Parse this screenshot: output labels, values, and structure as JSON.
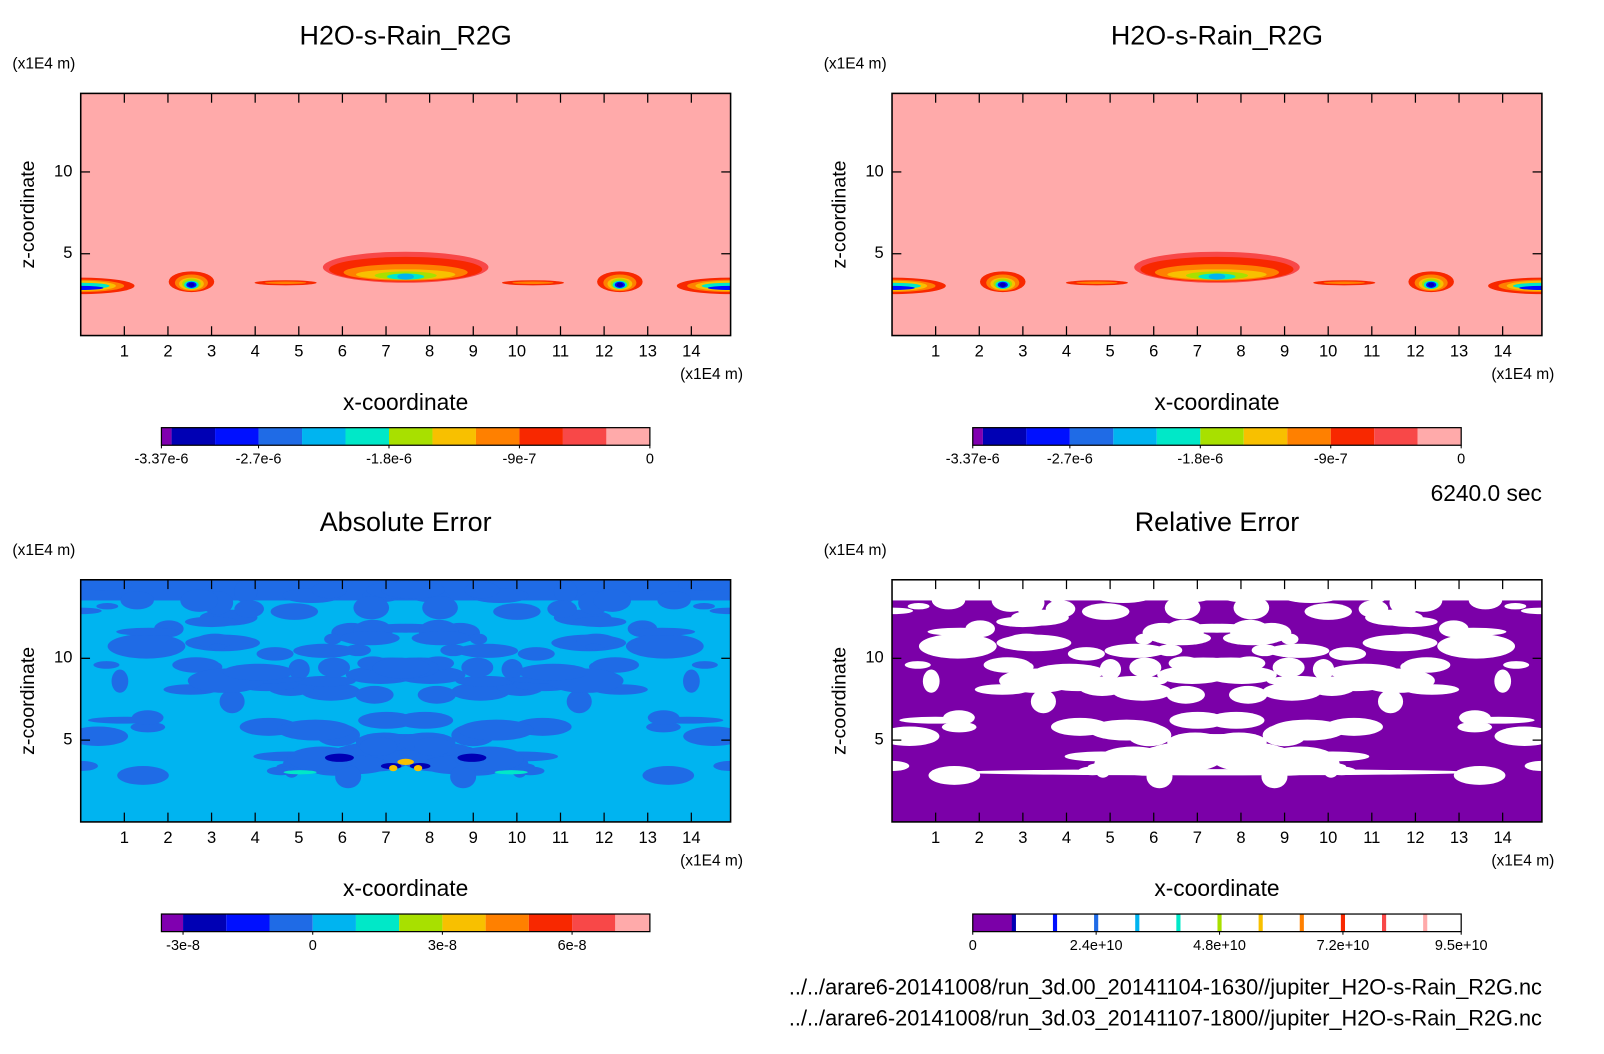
{
  "chart_data": [
    {
      "type": "contour",
      "title": "H2O-s-Rain_R2G",
      "xlabel": "x-coordinate",
      "ylabel": "z-coordinate",
      "x_unit": "(x1E4 m)",
      "y_unit": "(x1E4 m)",
      "xlim": [
        0,
        14.9
      ],
      "ylim": [
        0,
        14.8
      ],
      "xticks": [
        1,
        2,
        3,
        4,
        5,
        6,
        7,
        8,
        9,
        10,
        11,
        12,
        13,
        14
      ],
      "yticks": [
        5,
        10
      ],
      "colorbar": {
        "levels": [
          -3.37e-06,
          -3.3e-06,
          -3e-06,
          -2.7e-06,
          -2.4e-06,
          -2.1e-06,
          -1.8e-06,
          -1.5e-06,
          -1.2e-06,
          -9e-07,
          -6e-07,
          -3e-07,
          0
        ],
        "colors": [
          "#8000b0",
          "#0000b4",
          "#0010ff",
          "#1f6be6",
          "#00b4f0",
          "#00e8c8",
          "#a8e000",
          "#f8c000",
          "#ff8000",
          "#f82800",
          "#f84848",
          "#ffaaaa"
        ],
        "ticks": [
          {
            "value": -3.37e-06,
            "label": "-3.37e-6"
          },
          {
            "value": -2.7e-06,
            "label": "-2.7e-6"
          },
          {
            "value": -1.8e-06,
            "label": "-1.8e-6"
          },
          {
            "value": -9e-07,
            "label": "-9e-7"
          },
          0
        ]
      }
    },
    {
      "type": "contour",
      "title": "H2O-s-Rain_R2G",
      "xlabel": "x-coordinate",
      "ylabel": "z-coordinate",
      "x_unit": "(x1E4 m)",
      "y_unit": "(x1E4 m)",
      "xlim": [
        0,
        14.9
      ],
      "ylim": [
        0,
        14.8
      ],
      "xticks": [
        1,
        2,
        3,
        4,
        5,
        6,
        7,
        8,
        9,
        10,
        11,
        12,
        13,
        14
      ],
      "yticks": [
        5,
        10
      ],
      "colorbar": {
        "levels": [
          -3.37e-06,
          -3.3e-06,
          -3e-06,
          -2.7e-06,
          -2.4e-06,
          -2.1e-06,
          -1.8e-06,
          -1.5e-06,
          -1.2e-06,
          -9e-07,
          -6e-07,
          -3e-07,
          0
        ],
        "colors": [
          "#8000b0",
          "#0000b4",
          "#0010ff",
          "#1f6be6",
          "#00b4f0",
          "#00e8c8",
          "#a8e000",
          "#f8c000",
          "#ff8000",
          "#f82800",
          "#f84848",
          "#ffaaaa"
        ],
        "ticks": [
          {
            "value": -3.37e-06,
            "label": "-3.37e-6"
          },
          {
            "value": -2.7e-06,
            "label": "-2.7e-6"
          },
          {
            "value": -1.8e-06,
            "label": "-1.8e-6"
          },
          {
            "value": -9e-07,
            "label": "-9e-7"
          },
          0
        ]
      }
    },
    {
      "type": "contour",
      "title": "Absolute Error",
      "xlabel": "x-coordinate",
      "ylabel": "z-coordinate",
      "x_unit": "(x1E4 m)",
      "y_unit": "(x1E4 m)",
      "xlim": [
        0,
        14.9
      ],
      "ylim": [
        0,
        14.8
      ],
      "xticks": [
        1,
        2,
        3,
        4,
        5,
        6,
        7,
        8,
        9,
        10,
        11,
        12,
        13,
        14
      ],
      "yticks": [
        5,
        10
      ],
      "colorbar": {
        "levels": [
          -3.5e-08,
          -3e-08,
          -2e-08,
          -1e-08,
          0,
          1e-08,
          2e-08,
          3e-08,
          4e-08,
          5e-08,
          6e-08,
          7e-08,
          7.8e-08
        ],
        "colors": [
          "#8000b0",
          "#0000b4",
          "#0010ff",
          "#1f6be6",
          "#00b4f0",
          "#00e8c8",
          "#a8e000",
          "#f8c000",
          "#ff8000",
          "#f82800",
          "#f84848",
          "#ffaaaa"
        ],
        "ticks": [
          {
            "value": -3e-08,
            "label": "-3e-8"
          },
          0,
          {
            "value": 3e-08,
            "label": "3e-8"
          },
          {
            "value": 6e-08,
            "label": "6e-8"
          }
        ]
      }
    },
    {
      "type": "contour",
      "title": "Relative Error",
      "xlabel": "x-coordinate",
      "ylabel": "z-coordinate",
      "x_unit": "(x1E4 m)",
      "y_unit": "(x1E4 m)",
      "xlim": [
        0,
        14.9
      ],
      "ylim": [
        0,
        14.8
      ],
      "xticks": [
        1,
        2,
        3,
        4,
        5,
        6,
        7,
        8,
        9,
        10,
        11,
        12,
        13,
        14
      ],
      "yticks": [
        5,
        10
      ],
      "colorbar": {
        "levels": [
          0,
          8000000000.0,
          16000000000.0,
          24000000000.0,
          32000000000.0,
          40000000000.0,
          48000000000.0,
          56000000000.0,
          64000000000.0,
          72000000000.0,
          80000000000.0,
          88000000000.0,
          95000000000.0
        ],
        "colors": [
          "#7b00a8",
          "#ffffff",
          "#ffffff",
          "#ffffff",
          "#ffffff",
          "#ffffff",
          "#ffffff",
          "#ffffff",
          "#ffffff",
          "#ffffff",
          "#ffffff",
          "#ffffff"
        ],
        "line_colors": [
          "#0000b4",
          "#0010ff",
          "#1f6be6",
          "#00b4f0",
          "#00e8c8",
          "#a8e000",
          "#f8c000",
          "#ff8000",
          "#f82800",
          "#f84848",
          "#ffaaaa"
        ],
        "ticks": [
          0,
          {
            "value": 24000000000.0,
            "label": "2.4e+10"
          },
          {
            "value": 48000000000.0,
            "label": "4.8e+10"
          },
          {
            "value": 72000000000.0,
            "label": "7.2e+10"
          },
          {
            "value": 95000000000.0,
            "label": "9.5e+10"
          }
        ]
      }
    }
  ],
  "time_label": "6240.0 sec",
  "files": [
    "../../arare6-20141008/run_3d.00_20141104-1630//jupiter_H2O-s-Rain_R2G.nc",
    "../../arare6-20141008/run_3d.03_20141107-1800//jupiter_H2O-s-Rain_R2G.nc"
  ]
}
